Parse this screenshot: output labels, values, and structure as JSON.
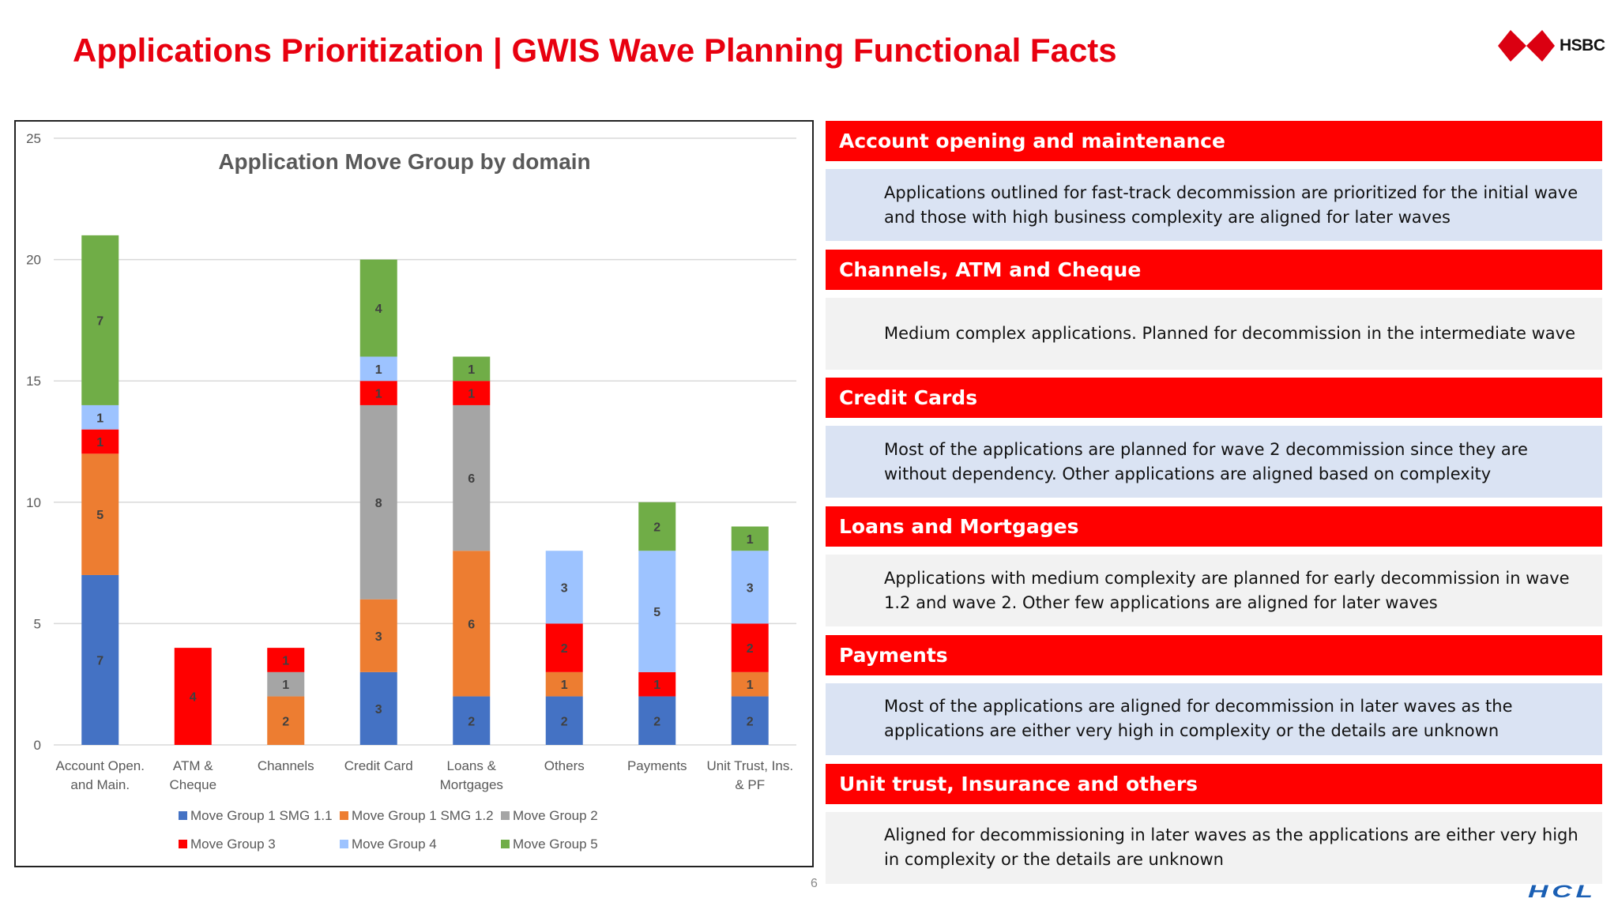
{
  "header": {
    "title": "Applications Prioritization | GWIS Wave Planning Functional Facts",
    "logo_text": "HSBC"
  },
  "footer": {
    "page_number": "6",
    "logo_text": "HCL"
  },
  "colors": {
    "accent": "#ff0000",
    "title_red": "#e8000f",
    "body_blue": "#dae3f3",
    "body_gray": "#f2f2f2"
  },
  "sections": [
    {
      "heading": "Account opening and maintenance",
      "text": "Applications outlined for fast-track decommission are prioritized for the initial wave and those with high business complexity are aligned for later waves",
      "bg": "#dae3f3"
    },
    {
      "heading": "Channels, ATM and Cheque",
      "text": "Medium complex applications. Planned for decommission in the intermediate wave",
      "bg": "#f2f2f2"
    },
    {
      "heading": "Credit Cards",
      "text": "Most of the applications are planned for wave 2 decommission since they are without dependency. Other applications are aligned based on complexity",
      "bg": "#dae3f3"
    },
    {
      "heading": "Loans and Mortgages",
      "text": "Applications with medium complexity are planned for early decommission in wave 1.2 and wave 2. Other few applications are aligned for later waves",
      "bg": "#f2f2f2"
    },
    {
      "heading": "Payments",
      "text": "Most of the applications are aligned for decommission in later waves as the applications are either very high in complexity or the details are unknown",
      "bg": "#dae3f3"
    },
    {
      "heading": "Unit trust, Insurance and others",
      "text": "Aligned for decommissioning in later waves as the applications are either very high in complexity or the details are unknown",
      "bg": "#f2f2f2"
    }
  ],
  "chart_data": {
    "type": "bar",
    "stacked": true,
    "title": "Application Move Group by domain",
    "xlabel": "",
    "ylabel": "",
    "ylim": [
      0,
      25
    ],
    "yticks": [
      0,
      5,
      10,
      15,
      20,
      25
    ],
    "grid": true,
    "legend_position": "bottom",
    "categories": [
      [
        "Account Open.",
        "and Main."
      ],
      [
        "ATM &",
        "Cheque"
      ],
      [
        "Channels"
      ],
      [
        "Credit Card"
      ],
      [
        "Loans &",
        "Mortgages"
      ],
      [
        "Others"
      ],
      [
        "Payments"
      ],
      [
        "Unit Trust, Ins.",
        "& PF"
      ]
    ],
    "series": [
      {
        "name": "Move Group 1 SMG 1.1",
        "color": "#4472c4",
        "values": [
          7,
          0,
          0,
          3,
          2,
          2,
          2,
          2
        ]
      },
      {
        "name": "Move Group 1 SMG 1.2",
        "color": "#ed7d31",
        "values": [
          5,
          0,
          2,
          3,
          6,
          1,
          0,
          1
        ]
      },
      {
        "name": "Move Group 2",
        "color": "#a5a5a5",
        "values": [
          0,
          0,
          1,
          8,
          6,
          0,
          0,
          0
        ]
      },
      {
        "name": "Move Group 3",
        "color": "#ff0000",
        "values": [
          1,
          4,
          1,
          1,
          1,
          2,
          1,
          2
        ]
      },
      {
        "name": "Move Group 4",
        "color": "#9dc3ff",
        "values": [
          1,
          0,
          0,
          1,
          0,
          3,
          5,
          3
        ]
      },
      {
        "name": "Move Group 5",
        "color": "#70ad47",
        "values": [
          7,
          0,
          0,
          4,
          1,
          0,
          2,
          1
        ]
      }
    ]
  }
}
